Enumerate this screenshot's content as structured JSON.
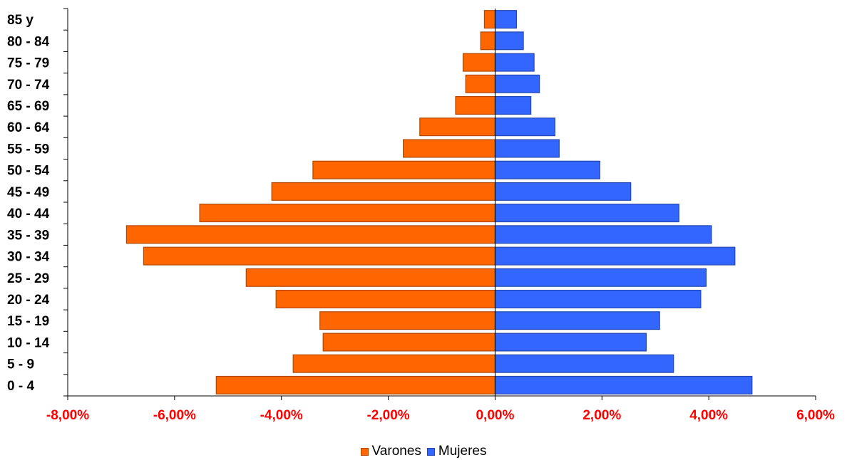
{
  "chart_data": {
    "type": "bar",
    "orientation": "horizontal",
    "categories": [
      "0 - 4",
      "5 - 9",
      "10 - 14",
      "15 - 19",
      "20 - 24",
      "25 - 29",
      "30 - 34",
      "35 - 39",
      "40 - 44",
      "45 - 49",
      "50 - 54",
      "55 - 59",
      "60 - 64",
      "65 - 69",
      "70 - 74",
      "75 - 79",
      "80 - 84",
      "85 y"
    ],
    "series": [
      {
        "name": "Varones",
        "color": "#ff6600",
        "values": [
          -5.22,
          -3.78,
          -3.22,
          -3.28,
          -4.1,
          -4.66,
          -6.58,
          -6.9,
          -5.53,
          -4.18,
          -3.41,
          -1.72,
          -1.41,
          -0.74,
          -0.55,
          -0.6,
          -0.27,
          -0.2
        ]
      },
      {
        "name": "Mujeres",
        "color": "#3366ff",
        "values": [
          4.81,
          3.34,
          2.83,
          3.08,
          3.85,
          3.95,
          4.49,
          4.05,
          3.44,
          2.54,
          1.96,
          1.2,
          1.12,
          0.67,
          0.83,
          0.73,
          0.53,
          0.4
        ]
      }
    ],
    "xticks": [
      "-8,00%",
      "-6,00%",
      "-4,00%",
      "-2,00%",
      "0,00%",
      "2,00%",
      "4,00%",
      "6,00%"
    ],
    "xtick_values": [
      -8,
      -6,
      -4,
      -2,
      0,
      2,
      4,
      6
    ],
    "xlim": [
      -8,
      6
    ],
    "tick_label_color": "#ff0000",
    "legend_position": "bottom",
    "grid": false
  }
}
